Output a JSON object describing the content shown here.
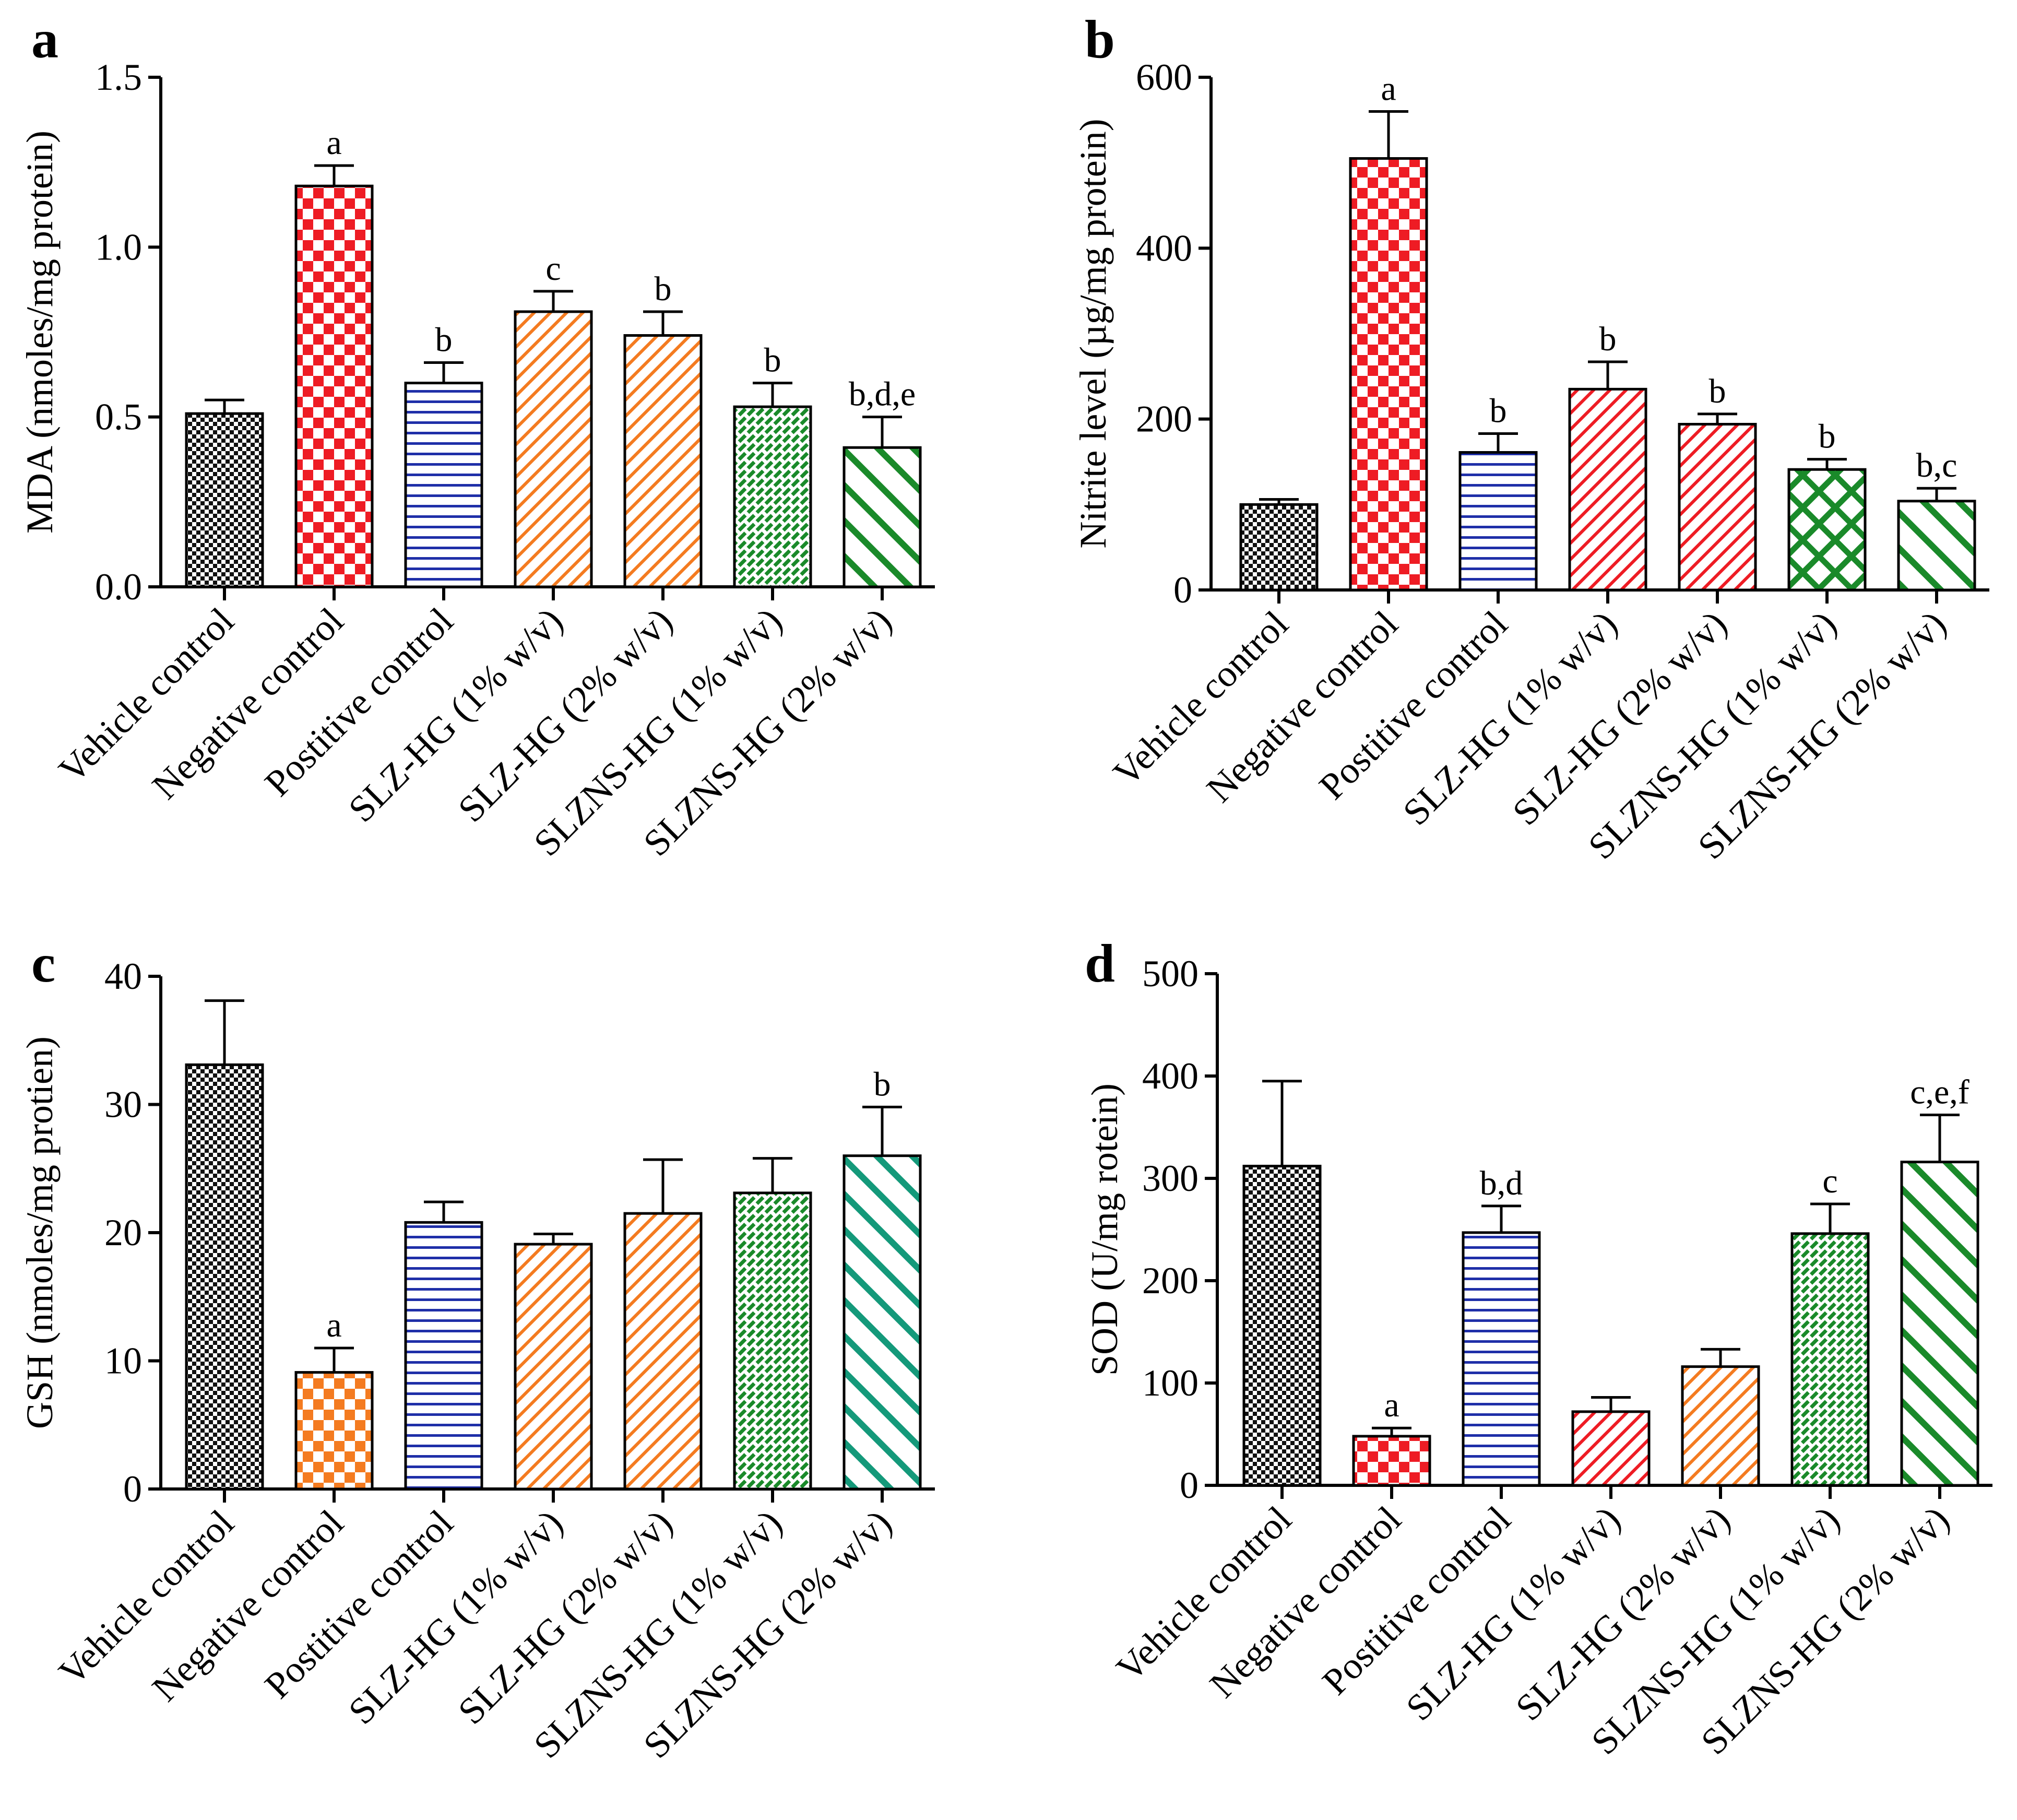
{
  "chart_data": [
    {
      "type": "bar",
      "panel": "a",
      "ylabel": "MDA (nmoles/mg protein)",
      "ylim": [
        0,
        1.5
      ],
      "yticks": [
        "0.0",
        "0.5",
        "1.0",
        "1.5"
      ],
      "categories": [
        "Vehicle control",
        "Negative control",
        "Postitive control",
        "SLZ-HG (1% w/v)",
        "SLZ-HG (2% w/v)",
        "SLZNS-HG (1% w/v)",
        "SLZNS-HG (2% w/v)"
      ],
      "values": [
        0.51,
        1.18,
        0.6,
        0.81,
        0.74,
        0.53,
        0.41
      ],
      "errors": [
        0.04,
        0.06,
        0.06,
        0.06,
        0.07,
        0.07,
        0.09
      ],
      "significance": [
        "",
        "a",
        "b",
        "c",
        "b",
        "b",
        "b,d,e"
      ],
      "patterns": [
        "checker-black",
        "checker-red",
        "hlines-blue",
        "diag-orange",
        "diag-orange",
        "grid-green",
        "wide-diag-green"
      ]
    },
    {
      "type": "bar",
      "panel": "b",
      "ylabel": "Nitrite level (µg/mg protein)",
      "ylim": [
        0,
        600
      ],
      "yticks": [
        "0",
        "200",
        "400",
        "600"
      ],
      "categories": [
        "Vehicle control",
        "Negative control",
        "Postitive control",
        "SLZ-HG (1% w/v)",
        "SLZ-HG (2% w/v)",
        "SLZNS-HG (1% w/v)",
        "SLZNS-HG (2% w/v)"
      ],
      "values": [
        100,
        505,
        161,
        235,
        194,
        141,
        104
      ],
      "errors": [
        6,
        55,
        22,
        32,
        12,
        12,
        15
      ],
      "significance": [
        "",
        "a",
        "b",
        "b",
        "b",
        "b",
        "b,c"
      ],
      "patterns": [
        "checker-black",
        "checker-red",
        "hlines-blue",
        "diag-red",
        "diag-red",
        "crosshatch-green",
        "wide-diag-green"
      ]
    },
    {
      "type": "bar",
      "panel": "c",
      "ylabel": "GSH (nmoles/mg protien)",
      "ylim": [
        0,
        40
      ],
      "yticks": [
        "0",
        "10",
        "20",
        "30",
        "40"
      ],
      "categories": [
        "Vehicle control",
        "Negative control",
        "Postitive control",
        "SLZ-HG (1% w/v)",
        "SLZ-HG (2% w/v)",
        "SLZNS-HG (1% w/v)",
        "SLZNS-HG (2% w/v)"
      ],
      "values": [
        33.1,
        9.1,
        20.8,
        19.1,
        21.5,
        23.1,
        26.0
      ],
      "errors": [
        5.0,
        1.9,
        1.6,
        0.8,
        4.2,
        2.7,
        3.8
      ],
      "significance": [
        "",
        "a",
        "",
        "",
        "",
        "",
        "b"
      ],
      "patterns": [
        "checker-black",
        "checker-orange",
        "hlines-blue",
        "diag-orange",
        "diag-orange",
        "grid-green",
        "wide-diag-teal"
      ]
    },
    {
      "type": "bar",
      "panel": "d",
      "ylabel": "SOD (U/mg rotein)",
      "ylim": [
        0,
        500
      ],
      "yticks": [
        "0",
        "100",
        "200",
        "300",
        "400",
        "500"
      ],
      "categories": [
        "Vehicle control",
        "Negative control",
        "Postitive control",
        "SLZ-HG (1% w/v)",
        "SLZ-HG (2% w/v)",
        "SLZNS-HG  (1% w/v)",
        "SLZNS-HG (2% w/v)"
      ],
      "values": [
        312,
        48,
        247,
        72,
        116,
        246,
        316
      ],
      "errors": [
        83,
        8,
        26,
        14,
        17,
        29,
        46
      ],
      "significance": [
        "",
        "a",
        "b,d",
        "",
        "",
        "c",
        "c,e,f"
      ],
      "patterns": [
        "checker-black",
        "checker-red",
        "hlines-blue",
        "diag-red",
        "diag-orange",
        "grid-green",
        "wide-diag-green"
      ]
    }
  ]
}
